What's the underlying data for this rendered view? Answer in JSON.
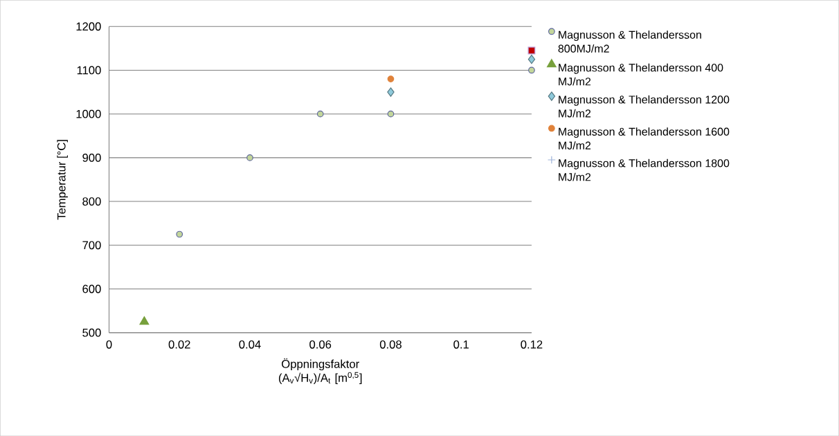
{
  "chart_data": {
    "type": "scatter",
    "xlabel": "Öppningsfaktor (A$_{v}$√H$_{v}$)/A$_{t}$ [m$^{0,5}$]",
    "ylabel": "Temperatur [°C]",
    "series": [
      {
        "name": "Magnusson & Thelandersson 800MJ/m2",
        "color": "#c3d69b",
        "marker": "circle",
        "x": [
          0.02,
          0.04,
          0.06,
          0.08,
          0.12
        ],
        "values": [
          725,
          900,
          1000,
          1000,
          1100
        ]
      },
      {
        "name": "Magnusson & Thelandersson 400 MJ/m2",
        "color": "#77a03c",
        "marker": "triangle",
        "x": [
          0.01
        ],
        "values": [
          525
        ]
      },
      {
        "name": "Magnusson & Thelandersson 1200 MJ/m2",
        "color": "#8fcadb",
        "marker": "diamond",
        "x": [
          0.08,
          0.12
        ],
        "values": [
          1050,
          1125
        ]
      },
      {
        "name": "Magnusson & Thelandersson 1600 MJ/m2",
        "color": "#e0823a",
        "marker": "circle",
        "x": [
          0.08
        ],
        "values": [
          1080
        ]
      },
      {
        "name": "Magnusson & Thelandersson 1800 MJ/m2",
        "color": "#9fb3d9",
        "marker": "cross"
      },
      {
        "color": "#c00000",
        "marker": "square",
        "x": [
          0.12
        ],
        "values": [
          1145
        ]
      }
    ],
    "xlim": [
      0,
      0.12
    ],
    "ylim": [
      500,
      1200
    ],
    "xticks": [
      0,
      0.02,
      0.04,
      0.06,
      0.08,
      {
        "value": 0.1,
        "label": "0.1"
      },
      0.12
    ],
    "yticks": [
      500,
      600,
      700,
      800,
      900,
      1000,
      1100,
      1200
    ],
    "grid": "y",
    "legend": "right"
  }
}
